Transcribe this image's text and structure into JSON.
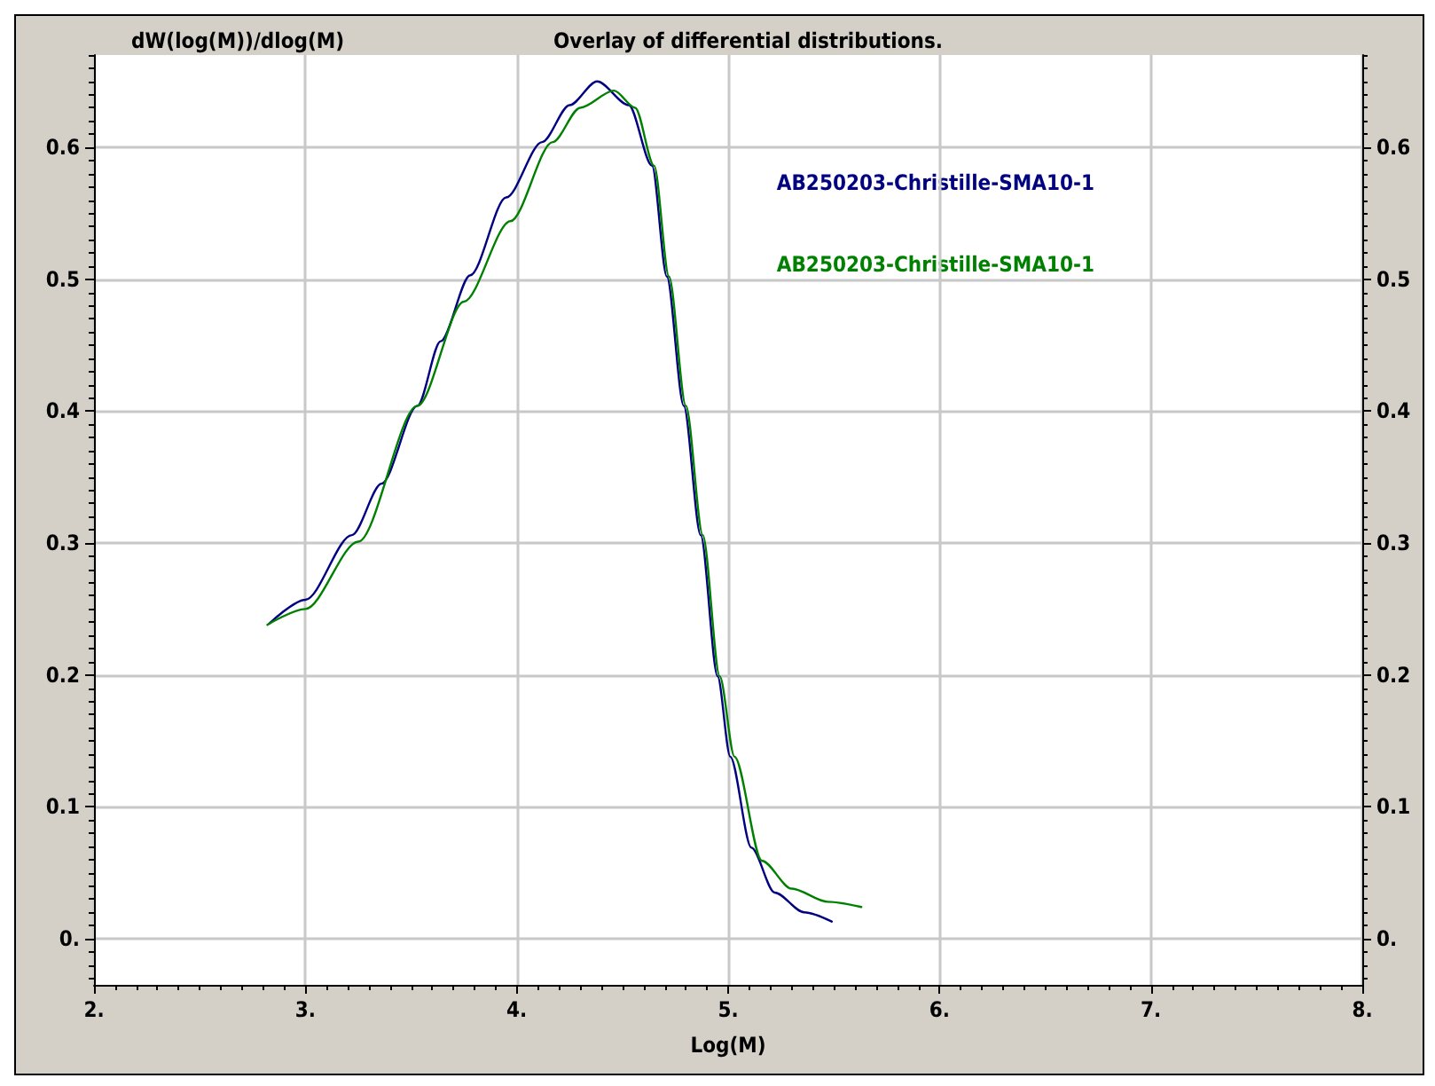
{
  "chart_data": {
    "type": "line",
    "title": "Overlay of differential distributions.",
    "xlabel": "Log(M)",
    "ylabel": "dW(log(M))/dlog(M)",
    "xlim": [
      2,
      8
    ],
    "xticks": [
      {
        "value": 2,
        "label": "2."
      },
      {
        "value": 3,
        "label": "3."
      },
      {
        "value": 4,
        "label": "4."
      },
      {
        "value": 5,
        "label": "5."
      },
      {
        "value": 6,
        "label": "6."
      },
      {
        "value": 7,
        "label": "7."
      },
      {
        "value": 8,
        "label": "8."
      }
    ],
    "ylim": [
      -0.035,
      0.67
    ],
    "yticks": [
      {
        "value": 0,
        "label": "0."
      },
      0.1,
      0.2,
      0.3,
      0.4,
      0.5,
      0.6
    ],
    "y2lim": [
      -0.035,
      0.67
    ],
    "y2ticks": [
      {
        "value": 0,
        "label": "0."
      },
      0.1,
      0.2,
      0.3,
      0.4,
      0.5,
      0.6
    ],
    "grid": true,
    "legend": "top right",
    "marker": "none",
    "line_style": "solid",
    "series": [
      {
        "name": "AB250203-Christille-SMA10-1",
        "color": "#000080",
        "x": [
          2.83,
          3.0,
          3.22,
          3.36,
          3.53,
          3.64,
          3.78,
          3.95,
          4.12,
          4.25,
          4.38,
          4.53,
          4.64,
          4.71,
          4.79,
          4.87,
          4.95,
          5.01,
          5.11,
          5.22,
          5.36,
          5.49
        ],
        "values": [
          0.239,
          0.257,
          0.306,
          0.345,
          0.404,
          0.453,
          0.503,
          0.562,
          0.604,
          0.632,
          0.65,
          0.632,
          0.586,
          0.502,
          0.404,
          0.306,
          0.199,
          0.138,
          0.069,
          0.035,
          0.02,
          0.013
        ]
      },
      {
        "name": "AB250203-Christille-SMA10-1",
        "color": "#008000",
        "x": [
          2.82,
          3.0,
          3.25,
          3.53,
          3.75,
          3.97,
          4.17,
          4.3,
          4.46,
          4.56,
          4.65,
          4.72,
          4.8,
          4.88,
          4.96,
          5.03,
          5.16,
          5.3,
          5.47,
          5.63
        ],
        "values": [
          0.238,
          0.25,
          0.301,
          0.404,
          0.483,
          0.544,
          0.604,
          0.63,
          0.643,
          0.63,
          0.586,
          0.502,
          0.404,
          0.306,
          0.199,
          0.138,
          0.059,
          0.038,
          0.028,
          0.024
        ]
      }
    ]
  }
}
